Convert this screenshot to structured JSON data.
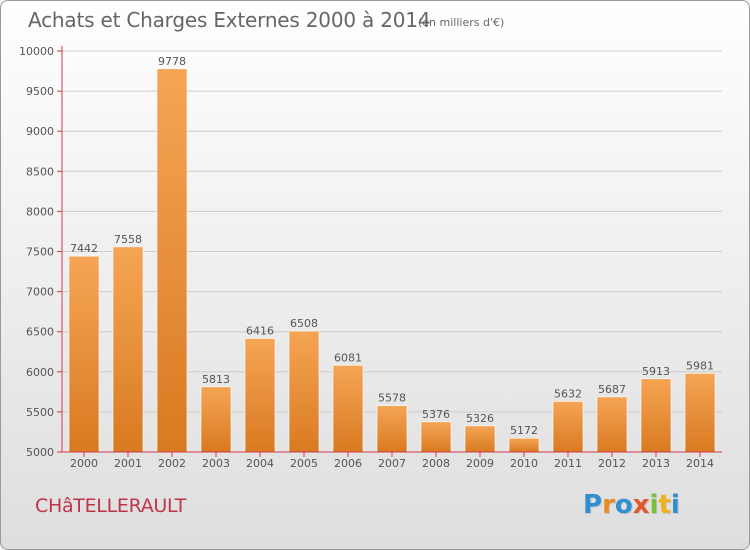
{
  "header": {
    "title": "Achats et Charges Externes 2000 à 2014",
    "subtitle": "(en milliers d'€)"
  },
  "footer": {
    "city": "CHâTELLERAULT",
    "logo_text": "Proxiti",
    "logo_letters": [
      "P",
      "r",
      "o",
      "x",
      "i",
      "t",
      "i"
    ]
  },
  "chart_data": {
    "type": "bar",
    "title": "Achats et Charges Externes 2000 à 2014",
    "subtitle": "(en milliers d'€)",
    "xlabel": "",
    "ylabel": "",
    "categories": [
      "2000",
      "2001",
      "2002",
      "2003",
      "2004",
      "2005",
      "2006",
      "2007",
      "2008",
      "2009",
      "2010",
      "2011",
      "2012",
      "2013",
      "2014"
    ],
    "values": [
      7442,
      7558,
      9778,
      5813,
      6416,
      6508,
      6081,
      5578,
      5376,
      5326,
      5172,
      5632,
      5687,
      5913,
      5981
    ],
    "ylim": [
      5000,
      10000
    ],
    "yticks": [
      5000,
      5500,
      6000,
      6500,
      7000,
      7500,
      8000,
      8500,
      9000,
      9500,
      10000
    ],
    "grid": true,
    "legend": "none",
    "bar_color_top": "#f5a555",
    "bar_color_bottom": "#d97a21",
    "grid_color": "#cccccc",
    "axis_color": "#d03a50"
  }
}
